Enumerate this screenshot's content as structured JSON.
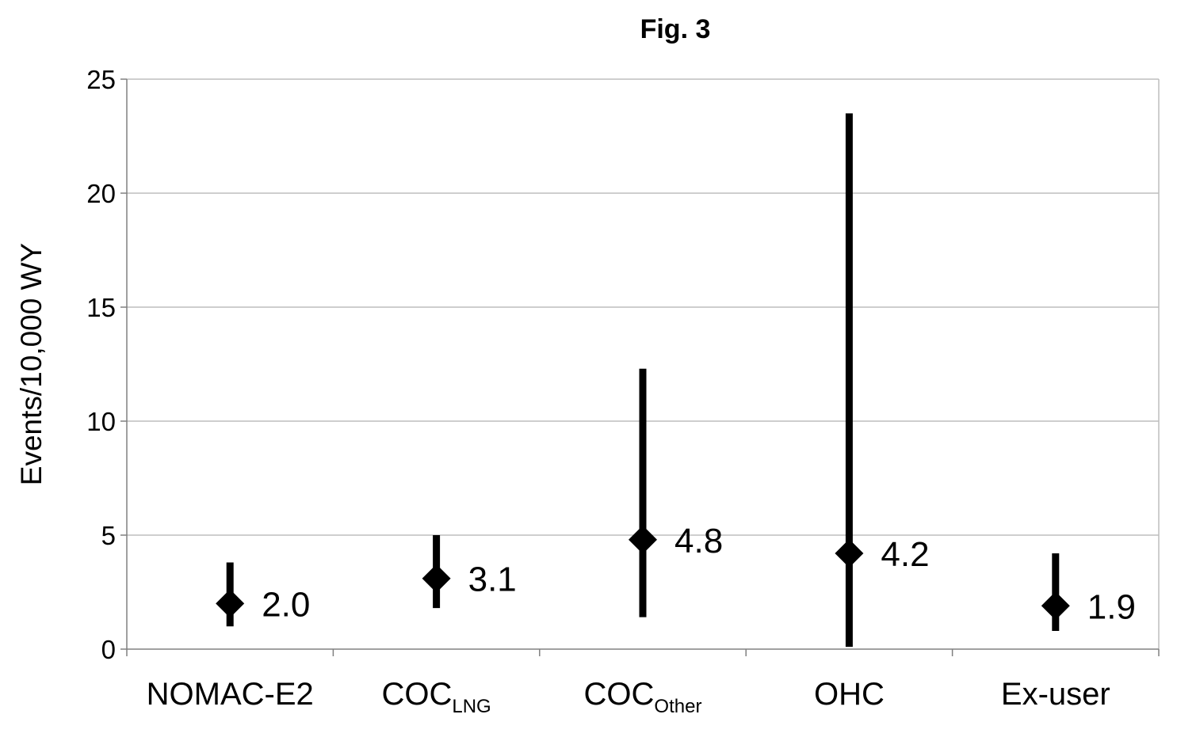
{
  "chart_data": {
    "type": "scatter",
    "title": "Fig. 3",
    "xlabel": "",
    "ylabel": "Events/10,000 WY",
    "ylim": [
      0,
      25
    ],
    "yticks": [
      0,
      5,
      10,
      15,
      20,
      25
    ],
    "grid": true,
    "legend": "none",
    "categories": [
      {
        "main": "NOMAC-E2",
        "sub": ""
      },
      {
        "main": "COC",
        "sub": "LNG"
      },
      {
        "main": "COC",
        "sub": "Other"
      },
      {
        "main": "OHC",
        "sub": ""
      },
      {
        "main": "Ex-user",
        "sub": ""
      }
    ],
    "values": [
      2.0,
      3.1,
      4.8,
      4.2,
      1.9
    ],
    "value_labels": [
      "2.0",
      "3.1",
      "4.8",
      "4.2",
      "1.9"
    ],
    "ci_lower": [
      1.0,
      1.8,
      1.4,
      0.1,
      0.8
    ],
    "ci_upper": [
      3.8,
      5.0,
      12.3,
      23.5,
      4.2
    ],
    "colors": {
      "marker": "#000000",
      "grid": "#bdbdbd",
      "axis": "#808080"
    }
  }
}
